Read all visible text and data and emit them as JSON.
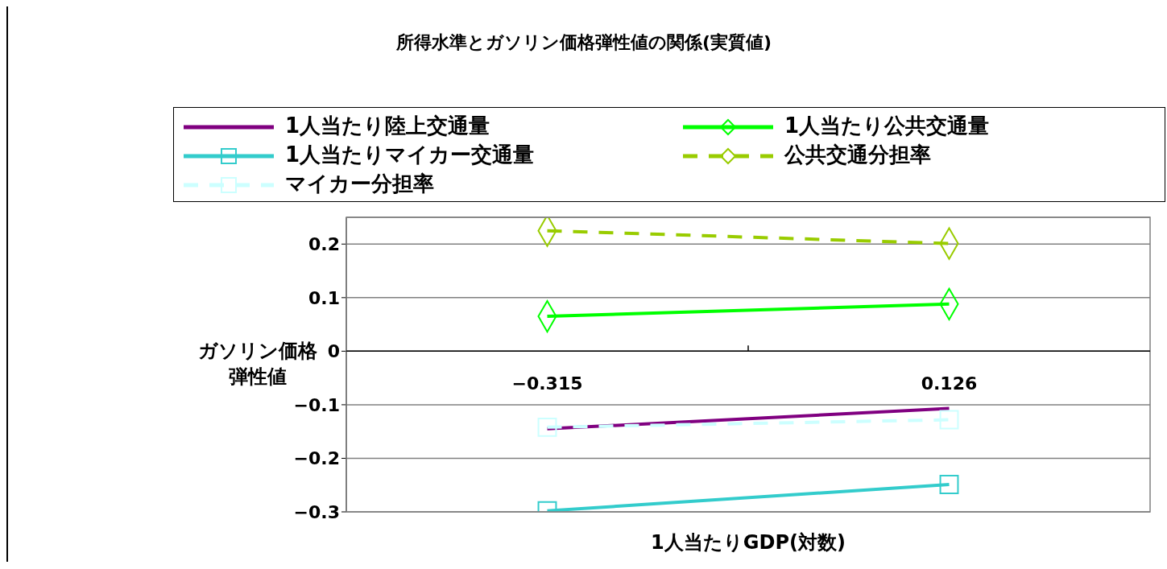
{
  "chart_data": {
    "type": "line",
    "title": "所得水準とガソリン価格弾性値の関係(実質値)",
    "xlabel": "1人当たりGDP(対数)",
    "ylabel": "ガソリン価格弾性値",
    "categories": [
      "−0.315",
      "0.126"
    ],
    "series": [
      {
        "name": "1人当たり陸上交通量",
        "color": "#800080",
        "values": [
          -0.145,
          -0.107
        ],
        "marker": "none",
        "line_style": "solid"
      },
      {
        "name": "1人当たり公共交通量",
        "color": "#00ff00",
        "values": [
          0.065,
          0.088
        ],
        "marker": "diamond",
        "line_style": "solid"
      },
      {
        "name": "1人当たりマイカー交通量",
        "color": "#33cccc",
        "values": [
          -0.298,
          -0.249
        ],
        "marker": "square",
        "line_style": "solid"
      },
      {
        "name": "公共交通分担率",
        "color": "#99cc00",
        "values": [
          0.225,
          0.201
        ],
        "marker": "diamond",
        "line_style": "dashed"
      },
      {
        "name": "マイカー分担率",
        "color": "#ccffff",
        "values": [
          -0.142,
          -0.128
        ],
        "marker": "square",
        "line_style": "dashed"
      }
    ],
    "ylim": [
      -0.3,
      0.25
    ],
    "yticks": [
      -0.3,
      -0.2,
      -0.1,
      0,
      0.1,
      0.2
    ],
    "grid": "y",
    "legend": "top"
  }
}
